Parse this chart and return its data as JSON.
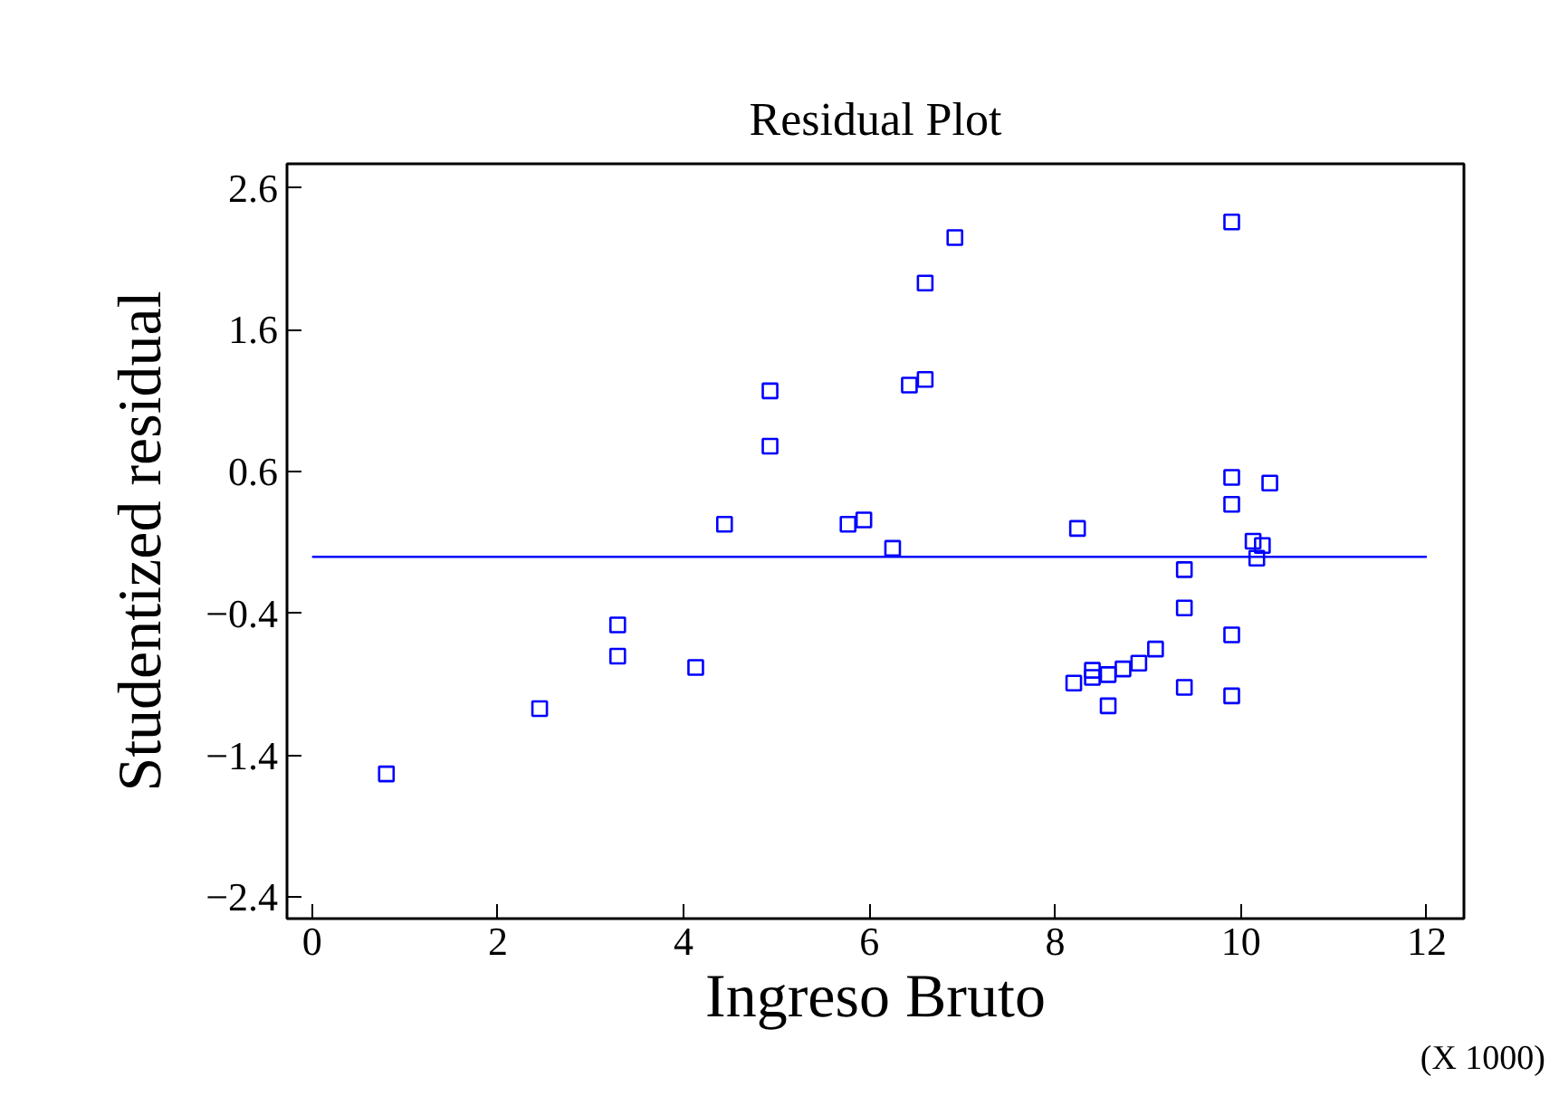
{
  "chart_data": {
    "type": "scatter",
    "title": "Residual Plot",
    "xlabel": "Ingreso Bruto",
    "ylabel": "Studentized residual",
    "annotations": [
      "(X 1000)"
    ],
    "x": [
      0.8,
      2.45,
      3.29,
      3.29,
      4.13,
      4.44,
      4.93,
      4.93,
      5.77,
      5.94,
      6.25,
      6.43,
      6.6,
      6.6,
      6.92,
      8.24,
      8.2,
      8.4,
      8.4,
      8.57,
      8.57,
      8.73,
      8.9,
      9.08,
      9.39,
      9.39,
      9.39,
      9.9,
      9.9,
      9.9,
      9.9,
      9.9,
      10.13,
      10.23,
      10.17,
      10.31
    ],
    "series": [
      {
        "color": "#0000ff",
        "values": [
          -1.53,
          -1.07,
          -0.48,
          -0.7,
          -0.78,
          0.23,
          1.17,
          0.78,
          0.23,
          0.26,
          0.06,
          1.21,
          1.25,
          1.93,
          2.25,
          0.2,
          -0.89,
          -0.8,
          -0.85,
          -0.83,
          -1.05,
          -0.79,
          -0.75,
          -0.65,
          -0.09,
          -0.36,
          -0.92,
          2.36,
          0.56,
          0.37,
          -0.55,
          -0.98,
          0.11,
          0.08,
          -0.01,
          0.52
        ]
      }
    ],
    "marker": "square",
    "grid": false,
    "xlim": [
      -0.27,
      12.4
    ],
    "xticks": [
      0,
      2,
      4,
      6,
      8,
      10,
      12
    ],
    "ylim": [
      -2.55,
      2.77
    ],
    "yticks": [
      -2.4,
      -1.4,
      -0.4,
      0.6,
      1.6,
      2.6
    ],
    "ref_lines": [
      {
        "axis": "y",
        "value": 0,
        "label": null,
        "color": "#0000ff"
      }
    ]
  }
}
